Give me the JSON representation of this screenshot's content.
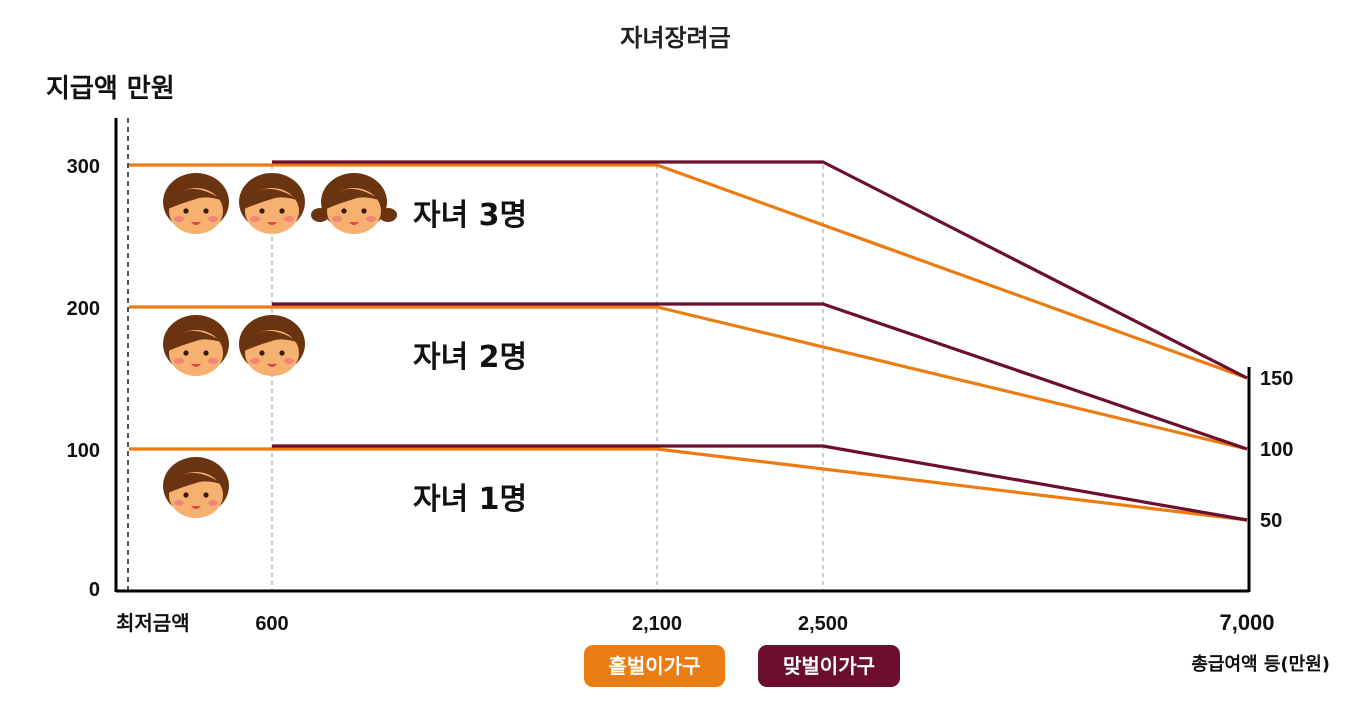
{
  "chart_data": {
    "type": "line",
    "title": "자녀장려금",
    "ylabel": "지급액 만원",
    "xlabel": "총급여액 등(만원)",
    "ylim": [
      0,
      330
    ],
    "x_ticks": [
      "최저금액",
      "600",
      "2,100",
      "2,500",
      "7,000"
    ],
    "x_tick_values": [
      0,
      600,
      2100,
      2500,
      7000
    ],
    "y_ticks_left": [
      "0",
      "100",
      "200",
      "300"
    ],
    "y_ticks_right": [
      "50",
      "100",
      "150"
    ],
    "legend": [
      {
        "name": "홑벌이가구",
        "color": "#ea7c12"
      },
      {
        "name": "맞벌이가구",
        "color": "#6c0f2f"
      }
    ],
    "groups": [
      {
        "label": "자녀 1명",
        "faces": 1,
        "max": 100,
        "min": 50,
        "single": [
          [
            0,
            100
          ],
          [
            2100,
            100
          ],
          [
            7000,
            50
          ]
        ],
        "dual": [
          [
            600,
            100
          ],
          [
            2500,
            100
          ],
          [
            7000,
            50
          ]
        ]
      },
      {
        "label": "자녀 2명",
        "faces": 2,
        "max": 200,
        "min": 100,
        "single": [
          [
            0,
            200
          ],
          [
            2100,
            200
          ],
          [
            7000,
            100
          ]
        ],
        "dual": [
          [
            600,
            200
          ],
          [
            2500,
            200
          ],
          [
            7000,
            100
          ]
        ]
      },
      {
        "label": "자녀 3명",
        "faces": 3,
        "max": 300,
        "min": 150,
        "single": [
          [
            0,
            300
          ],
          [
            2100,
            300
          ],
          [
            7000,
            150
          ]
        ],
        "dual": [
          [
            600,
            300
          ],
          [
            2500,
            300
          ],
          [
            7000,
            150
          ]
        ]
      }
    ]
  }
}
